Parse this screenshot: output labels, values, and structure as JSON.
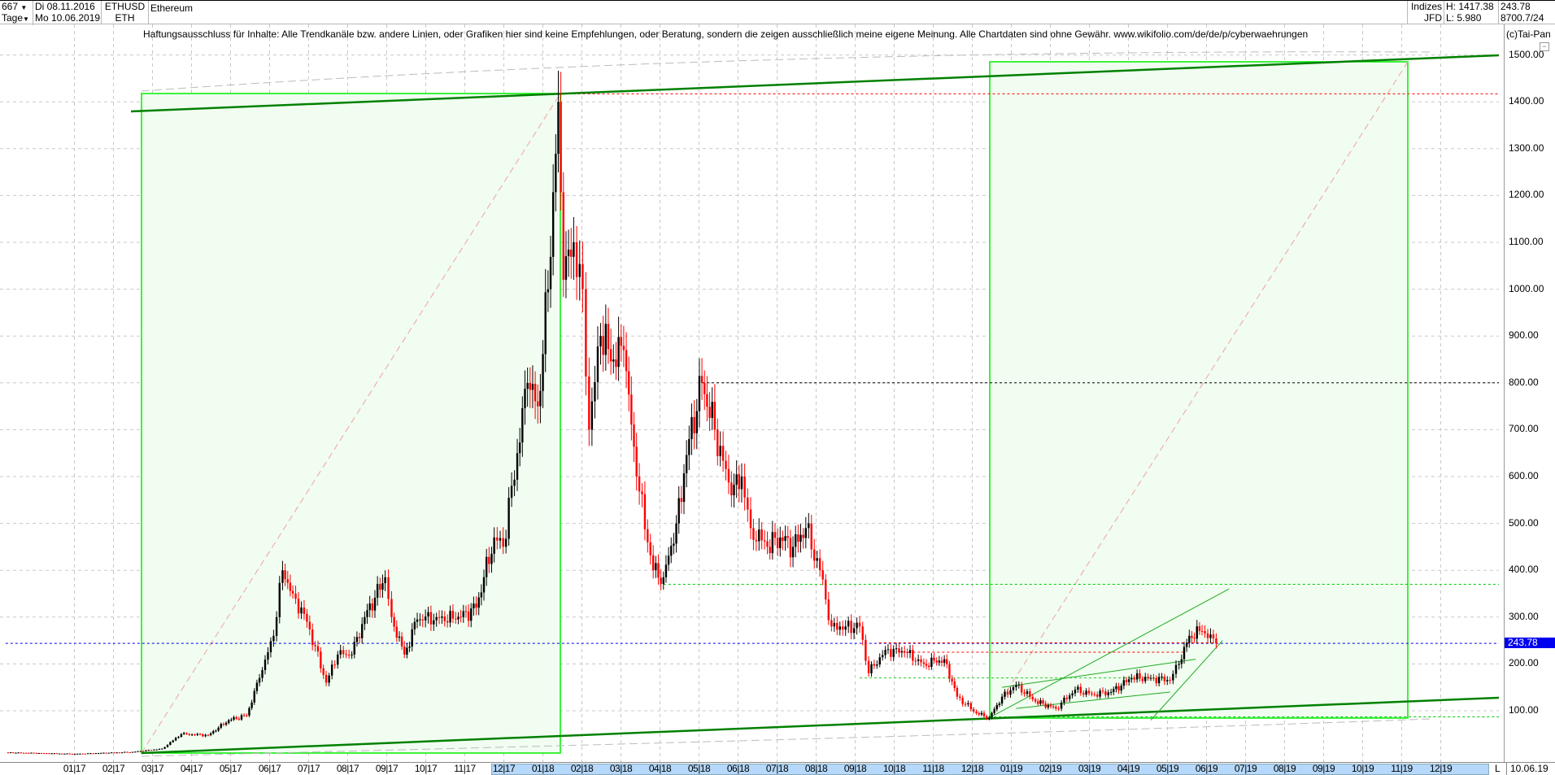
{
  "header": {
    "bars_count": "667",
    "period": "Tage",
    "date_from": "Di 08.11.2016",
    "date_to": "Mo 10.06.2019",
    "symbol": "ETHUSD",
    "symbol_short": "ETH",
    "name": "Ethereum",
    "group": "Indizes",
    "source": "JFD",
    "high": "H: 1417.38",
    "low": "L: 5.980",
    "last": "243.78",
    "volume": "8700.7/24"
  },
  "disclaimer": "Haftungsausschluss für Inhalte: Alle Trendkanäle bzw. andere Linien, oder Grafiken hier sind keine Empfehlungen, oder Beratung, sondern die zeigen ausschließlich meine eigene Meinung. Alle Chartdaten sind ohne Gewähr.  www.wikifolio.com/de/de/p/cyberwaehrungen",
  "brand": "(c)Tai-Pan",
  "minimize_label": "−",
  "x_marker": "L",
  "last_date": "10.06.19",
  "colors": {
    "up": "#000000",
    "down": "#ff0000",
    "trend": "#008000",
    "box": "#00ee00",
    "box_fill": "#f0fdf0",
    "last_price": "#0000f0"
  },
  "chart_data": {
    "type": "candlestick",
    "ylim": [
      0,
      1550
    ],
    "yticks": [
      "100.00",
      "200.00",
      "300.00",
      "400.00",
      "500.00",
      "600.00",
      "700.00",
      "800.00",
      "900.00",
      "1000.00",
      "1100.00",
      "1200.00",
      "1300.00",
      "1400.00",
      "1500.00"
    ],
    "xticks": [
      "01 17",
      "02 17",
      "03 17",
      "04 17",
      "05 17",
      "06 17",
      "07 17",
      "08 17",
      "09 17",
      "10 17",
      "11 17",
      "12 17",
      "01 18",
      "02 18",
      "03 18",
      "04 18",
      "05 18",
      "06 18",
      "07 18",
      "08 18",
      "09 18",
      "10 18",
      "11 18",
      "12 18",
      "01 19",
      "02 19",
      "03 19",
      "04 19",
      "05 19",
      "06 19",
      "07 19",
      "08 19",
      "09 19",
      "10 19",
      "11 19",
      "12 19"
    ],
    "last_price": 243.78,
    "grid": true,
    "closes": [
      [
        "2016-11-08",
        11
      ],
      [
        "2017-01-01",
        8
      ],
      [
        "2017-02-15",
        12
      ],
      [
        "2017-03-10",
        19
      ],
      [
        "2017-03-25",
        50
      ],
      [
        "2017-04-15",
        48
      ],
      [
        "2017-05-01",
        80
      ],
      [
        "2017-05-15",
        90
      ],
      [
        "2017-05-25",
        170
      ],
      [
        "2017-06-05",
        260
      ],
      [
        "2017-06-12",
        400
      ],
      [
        "2017-06-20",
        350
      ],
      [
        "2017-07-01",
        290
      ],
      [
        "2017-07-16",
        160
      ],
      [
        "2017-07-25",
        220
      ],
      [
        "2017-08-05",
        220
      ],
      [
        "2017-08-15",
        300
      ],
      [
        "2017-08-31",
        385
      ],
      [
        "2017-09-05",
        300
      ],
      [
        "2017-09-15",
        220
      ],
      [
        "2017-09-25",
        295
      ],
      [
        "2017-10-10",
        300
      ],
      [
        "2017-10-25",
        295
      ],
      [
        "2017-11-10",
        320
      ],
      [
        "2017-11-24",
        470
      ],
      [
        "2017-12-01",
        450
      ],
      [
        "2017-12-12",
        650
      ],
      [
        "2017-12-20",
        800
      ],
      [
        "2017-12-28",
        750
      ],
      [
        "2018-01-05",
        1000
      ],
      [
        "2018-01-13",
        1400
      ],
      [
        "2018-01-17",
        1020
      ],
      [
        "2018-01-25",
        1100
      ],
      [
        "2018-02-01",
        1000
      ],
      [
        "2018-02-06",
        700
      ],
      [
        "2018-02-15",
        900
      ],
      [
        "2018-02-25",
        850
      ],
      [
        "2018-03-05",
        870
      ],
      [
        "2018-03-15",
        600
      ],
      [
        "2018-03-28",
        400
      ],
      [
        "2018-04-05",
        385
      ],
      [
        "2018-04-15",
        500
      ],
      [
        "2018-04-25",
        680
      ],
      [
        "2018-05-05",
        800
      ],
      [
        "2018-05-15",
        700
      ],
      [
        "2018-05-28",
        560
      ],
      [
        "2018-06-05",
        600
      ],
      [
        "2018-06-12",
        490
      ],
      [
        "2018-06-25",
        450
      ],
      [
        "2018-07-05",
        470
      ],
      [
        "2018-07-15",
        450
      ],
      [
        "2018-07-25",
        490
      ],
      [
        "2018-08-05",
        400
      ],
      [
        "2018-08-14",
        280
      ],
      [
        "2018-08-25",
        280
      ],
      [
        "2018-09-05",
        280
      ],
      [
        "2018-09-12",
        180
      ],
      [
        "2018-09-25",
        230
      ],
      [
        "2018-10-10",
        225
      ],
      [
        "2018-10-25",
        200
      ],
      [
        "2018-11-10",
        210
      ],
      [
        "2018-11-20",
        130
      ],
      [
        "2018-12-05",
        95
      ],
      [
        "2018-12-15",
        85
      ],
      [
        "2018-12-25",
        130
      ],
      [
        "2019-01-05",
        155
      ],
      [
        "2019-01-20",
        120
      ],
      [
        "2019-02-05",
        105
      ],
      [
        "2019-02-20",
        145
      ],
      [
        "2019-03-05",
        135
      ],
      [
        "2019-03-20",
        140
      ],
      [
        "2019-04-05",
        170
      ],
      [
        "2019-04-20",
        170
      ],
      [
        "2019-05-05",
        165
      ],
      [
        "2019-05-12",
        200
      ],
      [
        "2019-05-20",
        260
      ],
      [
        "2019-05-30",
        270
      ],
      [
        "2019-06-10",
        243.78
      ]
    ],
    "horizontal_levels": [
      {
        "price": 1417,
        "color": "#ff0000",
        "from": "2018-01-13"
      },
      {
        "price": 800,
        "color": "#000000",
        "from": "2018-05-05"
      },
      {
        "price": 370,
        "color": "#00cc00",
        "from": "2018-04-05"
      },
      {
        "price": 87,
        "color": "#00cc00",
        "from": "2018-12-15"
      },
      {
        "price": 243.78,
        "color": "#0000f0",
        "from": "2016-11-08"
      }
    ]
  }
}
